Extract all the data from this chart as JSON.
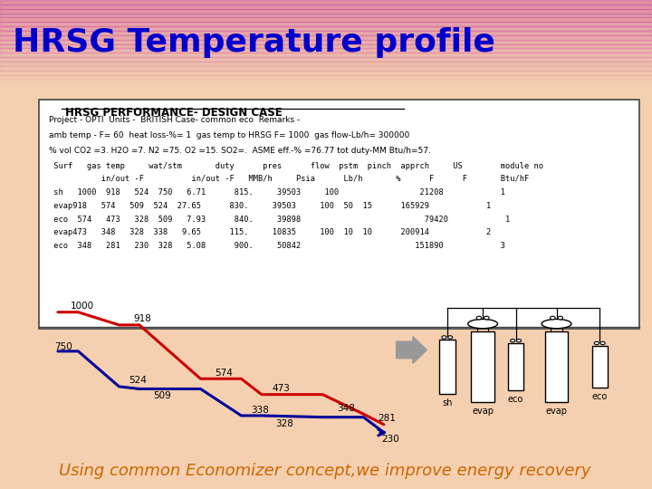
{
  "title": "HRSG Temperature profile",
  "title_color": "#0000cc",
  "title_fontsize": 26,
  "subtitle": "Using common Economizer concept,we improve energy recovery",
  "subtitle_color": "#cc6600",
  "subtitle_fontsize": 13,
  "bg_top": "#f0a0c0",
  "bg_bottom": "#f5dfc0",
  "table_title": "HRSG PERFORMANCE- DESIGN CASE",
  "table_line1": "Project - OPTI  Units -  BRITISH Case- common eco  Remarks -",
  "table_line2": "amb temp - F= 60  heat loss-%= 1  gas temp to HRSG F= 1000  gas flow-Lb/h= 300000",
  "table_line3": "% vol CO2 =3. H2O =7. N2 =75. O2 =15. SO2=.  ASME eff.-% =76.77 tot duty-MM Btu/h=57.",
  "table_header1": " Surf   gas temp     wat/stm       duty      pres      flow  pstm  pinch  apprch     US        module no",
  "table_header2": "           in/out -F          in/out -F   MMB/h     Psia      Lb/h       %      F      F       Btu/hF",
  "table_rows": [
    " sh   1000  918   524  750   6.71      815.     39503     100                 21208            1",
    " evap918   574   509  524  27.65      830.     39503     100  50  15      165929            1",
    " eco  574   473   328  509   7.93      840.     39898                          79420            1",
    " evap473   348   328  338   9.65      115.     10835     100  10  10      200914            2",
    " eco  348   281   230  328   5.08      900.     50842                        151890            3"
  ],
  "gas_x": [
    0,
    0.5,
    1.5,
    2.0,
    3.5,
    4.5,
    5.0,
    6.5,
    7.5,
    8.0
  ],
  "gas_y": [
    1000,
    1000,
    918,
    918,
    574,
    574,
    473,
    473,
    348,
    281
  ],
  "steam_x": [
    0,
    0.5,
    1.5,
    2.0,
    3.5,
    4.5,
    5.0,
    6.5,
    7.5,
    8.0
  ],
  "steam_y": [
    750,
    750,
    524,
    509,
    509,
    338,
    338,
    328,
    328,
    230
  ],
  "gas_color": "#cc0000",
  "steam_color": "#000099",
  "gas_labels": [
    [
      0.3,
      1000,
      "1000",
      0,
      12
    ],
    [
      1.8,
      918,
      "918",
      5,
      8
    ],
    [
      3.8,
      574,
      "574",
      5,
      8
    ],
    [
      5.2,
      473,
      "473",
      5,
      8
    ],
    [
      6.8,
      348,
      "348",
      5,
      8
    ],
    [
      7.8,
      281,
      "281",
      5,
      8
    ]
  ],
  "steam_labels": [
    [
      0.1,
      750,
      "750",
      -18,
      0
    ],
    [
      1.7,
      524,
      "524",
      3,
      8
    ],
    [
      2.3,
      509,
      "509",
      3,
      -14
    ],
    [
      4.7,
      338,
      "338",
      3,
      8
    ],
    [
      5.3,
      328,
      "328",
      3,
      -14
    ],
    [
      7.9,
      230,
      "230",
      3,
      -14
    ]
  ]
}
